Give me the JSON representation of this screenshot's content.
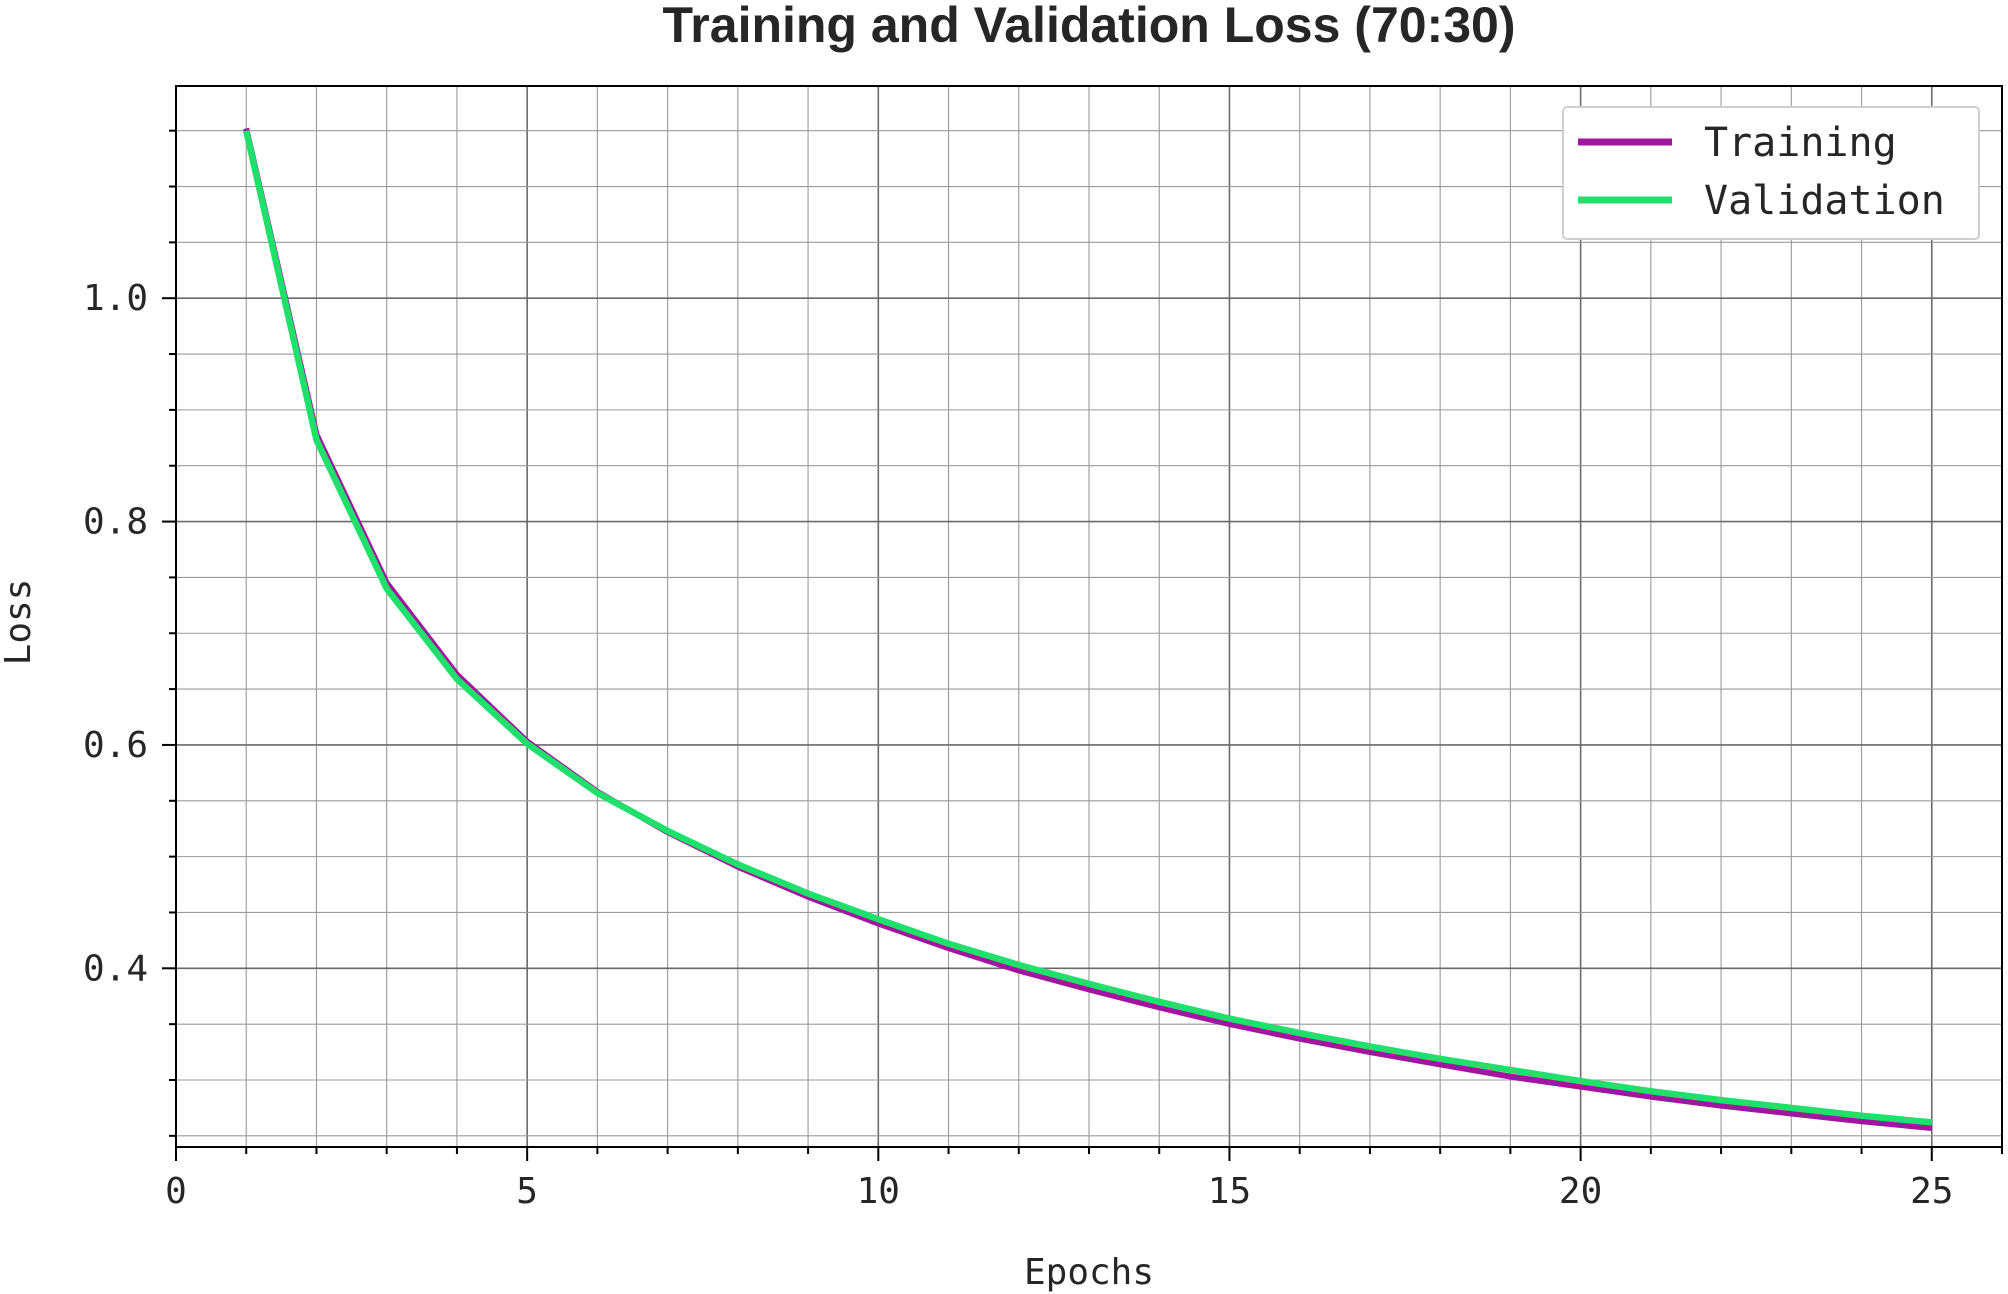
{
  "chart_data": {
    "type": "line",
    "title": "Training and Validation Loss (70:30)",
    "xlabel": "Epochs",
    "ylabel": "Loss",
    "xlim": [
      0,
      26
    ],
    "ylim": [
      0.24,
      1.19
    ],
    "xticks": [
      0,
      5,
      10,
      15,
      20,
      25
    ],
    "xtick_labels": [
      "0",
      "5",
      "10",
      "15",
      "20",
      "25"
    ],
    "yticks": [
      0.4,
      0.6,
      0.8,
      1.0
    ],
    "ytick_labels": [
      "0.4",
      "0.6",
      "0.8",
      "1.0"
    ],
    "grid": true,
    "legend_position": "top-right",
    "x": [
      1,
      2,
      3,
      4,
      5,
      6,
      7,
      8,
      9,
      10,
      11,
      12,
      13,
      14,
      15,
      16,
      17,
      18,
      19,
      20,
      21,
      22,
      23,
      24,
      25
    ],
    "series": [
      {
        "name": "Training",
        "color": "#a2159f",
        "values": [
          1.152,
          0.878,
          0.745,
          0.663,
          0.603,
          0.558,
          0.522,
          0.491,
          0.464,
          0.44,
          0.418,
          0.398,
          0.381,
          0.365,
          0.35,
          0.337,
          0.325,
          0.314,
          0.303,
          0.294,
          0.285,
          0.277,
          0.27,
          0.263,
          0.257
        ]
      },
      {
        "name": "Validation",
        "color": "#1ee06b",
        "values": [
          1.15,
          0.873,
          0.74,
          0.659,
          0.601,
          0.557,
          0.523,
          0.493,
          0.467,
          0.444,
          0.422,
          0.403,
          0.386,
          0.37,
          0.355,
          0.342,
          0.33,
          0.319,
          0.309,
          0.299,
          0.29,
          0.282,
          0.275,
          0.268,
          0.262
        ]
      }
    ]
  }
}
